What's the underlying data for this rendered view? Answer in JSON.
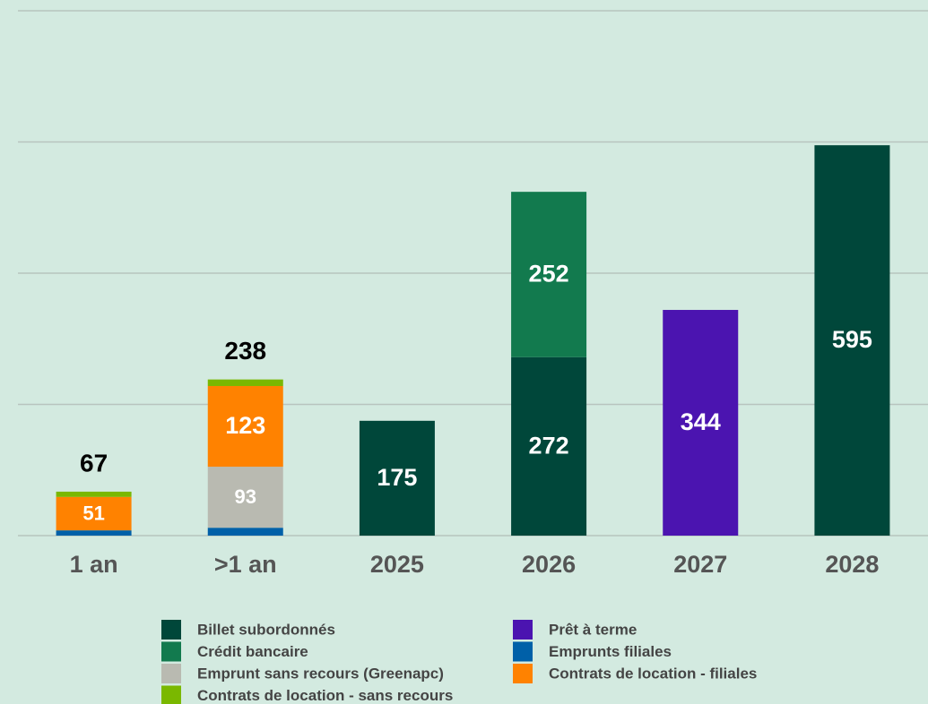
{
  "chart_data": {
    "type": "stacked_bar",
    "categories": [
      "1 an",
      ">1 an",
      "2025",
      "2026",
      "2027",
      "2028"
    ],
    "series": [
      {
        "name": "Emprunts filiales",
        "color": "#0060a8",
        "values": [
          8,
          12,
          null,
          null,
          null,
          null
        ]
      },
      {
        "name": "Emprunt sans recours (Greenapc)",
        "color": "#b9bab1",
        "values": [
          null,
          93,
          null,
          null,
          null,
          null
        ]
      },
      {
        "name": "Contrats de location - filiales",
        "color": "#ff8200",
        "values": [
          51,
          123,
          null,
          null,
          null,
          null
        ]
      },
      {
        "name": "Contrats de location - sans recours",
        "color": "#7ab800",
        "values": [
          8,
          10,
          null,
          null,
          null,
          null
        ]
      },
      {
        "name": "Billet subordonnés",
        "color": "#00473a",
        "values": [
          null,
          null,
          175,
          272,
          null,
          595
        ]
      },
      {
        "name": "Crédit bancaire",
        "color": "#127a4e",
        "values": [
          null,
          null,
          null,
          252,
          null,
          null
        ]
      },
      {
        "name": "Prêt à terme",
        "color": "#4b14b0",
        "values": [
          null,
          null,
          null,
          null,
          344,
          null
        ]
      }
    ],
    "totals": [
      67,
      238,
      null,
      null,
      null,
      null
    ],
    "ylim": [
      0,
      800
    ],
    "yticks": [
      0,
      200,
      400,
      600,
      800
    ],
    "grid": true
  }
}
